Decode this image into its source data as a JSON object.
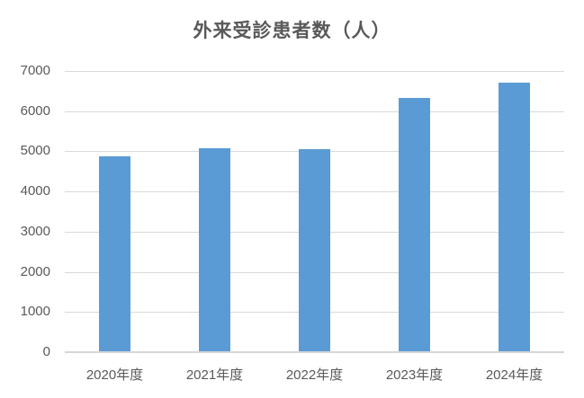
{
  "chart_data": {
    "type": "bar",
    "title": "外来受診患者数（人）",
    "categories": [
      "2020年度",
      "2021年度",
      "2022年度",
      "2023年度",
      "2024年度"
    ],
    "values": [
      4880,
      5080,
      5060,
      6320,
      6700
    ],
    "ylim": [
      0,
      7000
    ],
    "yticks": [
      0,
      1000,
      2000,
      3000,
      4000,
      5000,
      6000,
      7000
    ],
    "grid": true,
    "legend_position": "none",
    "colors": {
      "bar": "#5B9BD5",
      "gridline": "#D9D9D9",
      "axis_line": "#D6D6D6",
      "text": "#595959",
      "background": "#FFFFFF"
    }
  }
}
